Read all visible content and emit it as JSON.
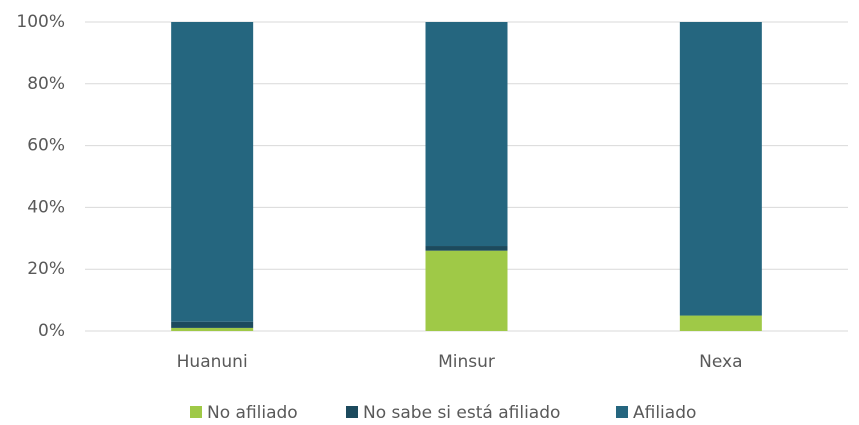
{
  "chart_data": {
    "type": "stacked_bar",
    "categories": [
      "Huanuni",
      "Minsur",
      "Nexa"
    ],
    "series": [
      {
        "name": "No afiliado",
        "color": "#9fc947",
        "values": [
          1,
          26,
          5
        ]
      },
      {
        "name": "No sabe si está afiliado",
        "color": "#1c4a5d",
        "values": [
          2,
          1.5,
          0
        ]
      },
      {
        "name": "Afiliado",
        "color": "#25667f",
        "values": [
          97,
          72.5,
          95
        ]
      }
    ],
    "ylim": [
      0,
      100
    ],
    "yticks": [
      {
        "value": 0,
        "label": "0%"
      },
      {
        "value": 20,
        "label": "20%"
      },
      {
        "value": 40,
        "label": "40%"
      },
      {
        "value": 60,
        "label": "60%"
      },
      {
        "value": 80,
        "label": "80%"
      },
      {
        "value": 100,
        "label": "100%"
      }
    ],
    "grid": true,
    "legend": "bottom"
  }
}
